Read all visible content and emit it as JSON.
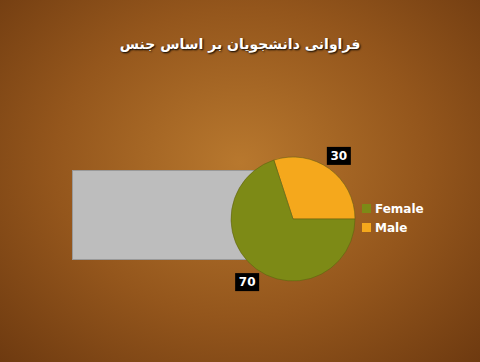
{
  "chart_data": {
    "type": "pie",
    "title": "فراوانی دانشجویان بر اساس جنس",
    "categories": [
      "Male",
      "Female"
    ],
    "values": [
      30,
      70
    ],
    "colors": [
      "#f5a81c",
      "#7d8a16"
    ],
    "data_labels": true,
    "legend": "right"
  }
}
